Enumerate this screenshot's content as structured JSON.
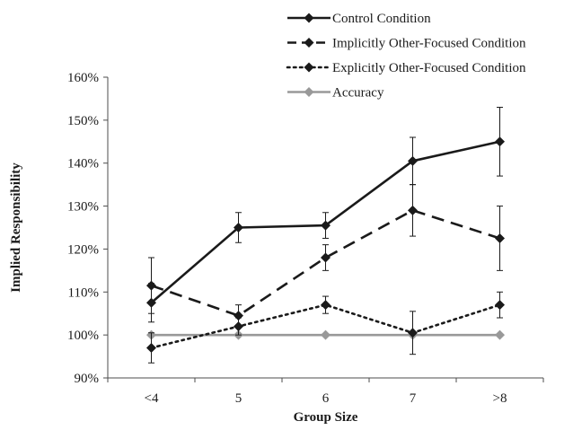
{
  "chart_data": {
    "type": "line",
    "title": "",
    "xlabel": "Group Size",
    "ylabel": "Implied Responsibility",
    "categories": [
      "<4",
      "5",
      "6",
      "7",
      ">8"
    ],
    "ylim": [
      90,
      160
    ],
    "yticks": [
      90,
      100,
      110,
      120,
      130,
      140,
      150,
      160
    ],
    "ytick_labels": [
      "90%",
      "100%",
      "110%",
      "120%",
      "130%",
      "140%",
      "150%",
      "160%"
    ],
    "grid": false,
    "legend_position": "top-right",
    "series": [
      {
        "name": "Control Condition",
        "values": [
          107.5,
          125.0,
          125.5,
          140.5,
          145.0
        ],
        "errors": [
          4.5,
          3.5,
          3.0,
          5.5,
          8.0
        ],
        "color": "#1a1a1a",
        "line_style": "solid",
        "marker": "diamond"
      },
      {
        "name": "Implicitly Other-Focused Condition",
        "values": [
          111.5,
          104.5,
          118.0,
          129.0,
          122.5
        ],
        "errors": [
          6.5,
          2.5,
          3.0,
          6.0,
          7.5
        ],
        "color": "#1a1a1a",
        "line_style": "dashed",
        "marker": "diamond"
      },
      {
        "name": "Explicitly Other-Focused Condition",
        "values": [
          97.0,
          102.0,
          107.0,
          100.5,
          107.0
        ],
        "errors": [
          3.5,
          2.0,
          2.0,
          5.0,
          3.0
        ],
        "color": "#1a1a1a",
        "line_style": "dotted",
        "marker": "diamond"
      },
      {
        "name": "Accuracy",
        "values": [
          100,
          100,
          100,
          100,
          100
        ],
        "errors": null,
        "color": "#999999",
        "line_style": "solid",
        "marker": "diamond"
      }
    ]
  }
}
